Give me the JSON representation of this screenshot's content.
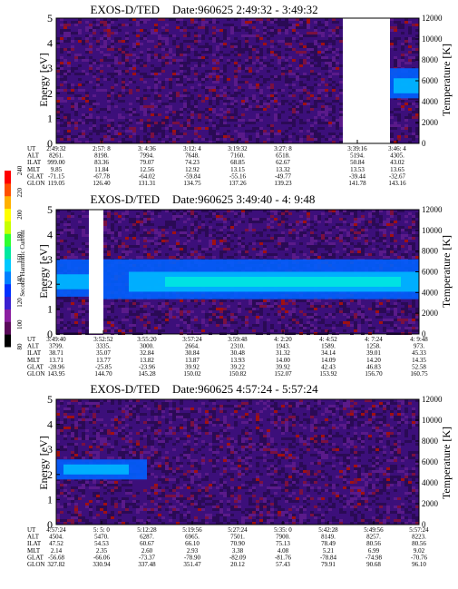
{
  "colorbar": {
    "label": "Second Harmonic Current",
    "ticks": [
      "80",
      "100",
      "120",
      "140",
      "160",
      "180",
      "200",
      "220",
      "240"
    ],
    "colors": [
      "#000000",
      "#5a0a5a",
      "#8b1fa0",
      "#3a1fd0",
      "#0030ff",
      "#0080ff",
      "#00c8ff",
      "#00e8a0",
      "#30ff30",
      "#c8ff00",
      "#ffff00",
      "#ffb000",
      "#ff5000",
      "#ff0000"
    ]
  },
  "chart_data": [
    {
      "type": "heatmap",
      "title": "EXOS-D/TED",
      "date_label": "Date:960625  2:49:32 - 3:49:32",
      "ylabel": "Energy [eV]",
      "y2label": "Temperature [K]",
      "ylim": [
        0,
        5
      ],
      "y2lim": [
        0,
        12000
      ],
      "yticks": [
        "0",
        "1",
        "2",
        "3",
        "4",
        "5"
      ],
      "y2ticks": [
        "0",
        "2000",
        "4000",
        "6000",
        "8000",
        "10000",
        "12000"
      ],
      "gap": [
        0.79,
        0.92
      ],
      "bands": [
        {
          "t": [
            0.92,
            1.0
          ],
          "y0": 1.8,
          "y1": 3.0,
          "level": 5
        },
        {
          "t": [
            0.93,
            1.0
          ],
          "y0": 2.0,
          "y1": 2.6,
          "level": 6
        }
      ],
      "table": {
        "rows": [
          "UT",
          "ALT",
          "ILAT",
          "MLT",
          "GLAT",
          "GLON"
        ],
        "cols": [
          [
            "2:49:32",
            "8261.",
            "999.00",
            "9.85",
            "-71.15",
            "119.05"
          ],
          [
            "2:57: 8",
            "8198.",
            "83.36",
            "11.84",
            "-67.78",
            "126.40"
          ],
          [
            "3: 4:36",
            "7994.",
            "79.07",
            "12.56",
            "-64.02",
            "131.31"
          ],
          [
            "3:12: 4",
            "7648.",
            "74.23",
            "12.92",
            "-59.84",
            "134.75"
          ],
          [
            "3:19:32",
            "7160.",
            "68.85",
            "13.15",
            "-55.16",
            "137.26"
          ],
          [
            "3:27: 8",
            "6518.",
            "62.67",
            "13.32",
            "-49.77",
            "139.23"
          ],
          [
            "3:39:16",
            "5194.",
            "50.84",
            "13.53",
            "-39.44",
            "141.78"
          ],
          [
            "3:46: 4",
            "4305.",
            "43.02",
            "13.65",
            "-32.67",
            "143.16"
          ]
        ],
        "col_pos": [
          0.0,
          0.125,
          0.25,
          0.375,
          0.5,
          0.625,
          0.83,
          0.94
        ]
      }
    },
    {
      "type": "heatmap",
      "title": "EXOS-D/TED",
      "date_label": "Date:960625  3:49:40 - 4: 9:48",
      "ylabel": "Energy [eV]",
      "y2label": "Temperature [K]",
      "ylim": [
        0,
        5
      ],
      "y2lim": [
        0,
        12000
      ],
      "yticks": [
        "0",
        "1",
        "2",
        "3",
        "4",
        "5"
      ],
      "y2ticks": [
        "0",
        "2000",
        "4000",
        "6000",
        "8000",
        "10000",
        "12000"
      ],
      "gap": [
        0.09,
        0.13
      ],
      "bands": [
        {
          "t": [
            0.0,
            0.09
          ],
          "y0": 1.5,
          "y1": 3.0,
          "level": 5
        },
        {
          "t": [
            0.0,
            0.09
          ],
          "y0": 1.8,
          "y1": 2.4,
          "level": 6
        },
        {
          "t": [
            0.13,
            1.0
          ],
          "y0": 1.4,
          "y1": 3.0,
          "level": 5
        },
        {
          "t": [
            0.2,
            1.0
          ],
          "y0": 1.7,
          "y1": 2.5,
          "level": 6
        },
        {
          "t": [
            0.3,
            0.95
          ],
          "y0": 1.9,
          "y1": 2.3,
          "level": 7
        }
      ],
      "table": {
        "rows": [
          "UT",
          "ALT",
          "ILAT",
          "MLT",
          "GLAT",
          "GLON"
        ],
        "cols": [
          [
            "3:49:40",
            "3799.",
            "38.71",
            "13.71",
            "-28.96",
            "143.95"
          ],
          [
            "3:52:52",
            "3335.",
            "35.07",
            "13.77",
            "-25.85",
            "144.70"
          ],
          [
            "3:55:20",
            "3000.",
            "32.84",
            "13.82",
            "-23.96",
            "145.28"
          ],
          [
            "3:57:24",
            "2664.",
            "30.84",
            "13.87",
            "39.92",
            "150.02"
          ],
          [
            "3:59:48",
            "2310.",
            "30.48",
            "13.93",
            "39.22",
            "150.82"
          ],
          [
            "4: 2:20",
            "1943.",
            "31.32",
            "14.00",
            "39.92",
            "152.07"
          ],
          [
            "4: 4:52",
            "1589.",
            "34.14",
            "14.09",
            "42.43",
            "153.92"
          ],
          [
            "4: 7:24",
            "1258.",
            "39.01",
            "14.20",
            "46.83",
            "156.70"
          ],
          [
            "4: 9:48",
            "973.",
            "45.33",
            "14.35",
            "52.58",
            "160.75"
          ]
        ],
        "col_pos": [
          0.0,
          0.13,
          0.25,
          0.375,
          0.5,
          0.625,
          0.75,
          0.875,
          1.0
        ]
      }
    },
    {
      "type": "heatmap",
      "title": "EXOS-D/TED",
      "date_label": "Date:960625  4:57:24 - 5:57:24",
      "ylabel": "Energy [eV]",
      "y2label": "Temperature [K]",
      "ylim": [
        0,
        5
      ],
      "y2lim": [
        0,
        12000
      ],
      "yticks": [
        "0",
        "1",
        "2",
        "3",
        "4",
        "5"
      ],
      "y2ticks": [
        "0",
        "2000",
        "4000",
        "6000",
        "8000",
        "10000",
        "12000"
      ],
      "gap": null,
      "bands": [
        {
          "t": [
            0.0,
            0.25
          ],
          "y0": 1.8,
          "y1": 2.6,
          "level": 5
        },
        {
          "t": [
            0.02,
            0.2
          ],
          "y0": 2.0,
          "y1": 2.4,
          "level": 6
        }
      ],
      "table": {
        "rows": [
          "UT",
          "ALT",
          "ILAT",
          "MLT",
          "GLAT",
          "GLON"
        ],
        "cols": [
          [
            "4:57:24",
            "4504.",
            "47.52",
            "2.14",
            "-56.68",
            "327.82"
          ],
          [
            "5: 5: 0",
            "5470.",
            "54.53",
            "2.35",
            "-66.06",
            "330.94"
          ],
          [
            "5:12:28",
            "6287.",
            "60.67",
            "2.60",
            "-73.37",
            "337.48"
          ],
          [
            "5:19:56",
            "6965.",
            "66.10",
            "2.93",
            "-78.90",
            "351.47"
          ],
          [
            "5:27:24",
            "7501.",
            "70.90",
            "3.38",
            "-82.09",
            "20.12"
          ],
          [
            "5:35: 0",
            "7900.",
            "75.13",
            "4.08",
            "-81.76",
            "57.43"
          ],
          [
            "5:42:28",
            "8149.",
            "78.49",
            "5.21",
            "-78.84",
            "79.91"
          ],
          [
            "5:49:56",
            "8257.",
            "80.56",
            "6.99",
            "-74.98",
            "90.68"
          ],
          [
            "5:57:24",
            "8223.",
            "80.56",
            "9.02",
            "-70.76",
            "96.10"
          ]
        ],
        "col_pos": [
          0.0,
          0.125,
          0.25,
          0.375,
          0.5,
          0.625,
          0.75,
          0.875,
          1.0
        ]
      }
    }
  ]
}
